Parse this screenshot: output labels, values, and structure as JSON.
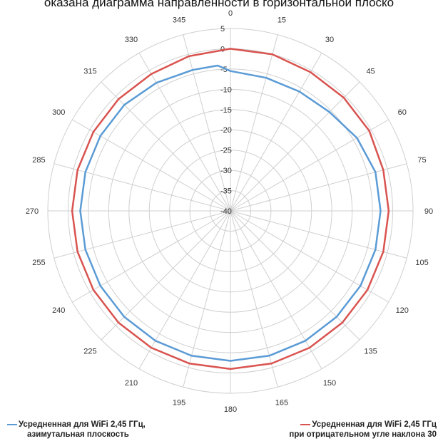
{
  "title": "оказана диаграмма направленности в горизонтальной плоско",
  "chart_data": {
    "type": "polar-line",
    "angle_ticks": [
      "0",
      "15",
      "30",
      "45",
      "60",
      "75",
      "90",
      "105",
      "120",
      "135",
      "150",
      "165",
      "180",
      "195",
      "210",
      "225",
      "240",
      "255",
      "270",
      "285",
      "300",
      "315",
      "330",
      "345"
    ],
    "radial_ticks": [
      "5",
      "0",
      "-5",
      "-10",
      "-15",
      "-20",
      "-25",
      "-30",
      "-35",
      "-40"
    ],
    "radial_range": [
      -40,
      5
    ],
    "grid": true,
    "series": [
      {
        "name_line1": "Усредненная для WiFi 2,45 ГГц,",
        "name_line2": "азимутальная плоскость",
        "color": "#5b9bd5",
        "angles": [
          0,
          15,
          30,
          45,
          60,
          75,
          90,
          105,
          120,
          135,
          150,
          165,
          180,
          195,
          210,
          225,
          240,
          255,
          270,
          285,
          300,
          315,
          330,
          345,
          355
        ],
        "values": [
          -5.5,
          -6,
          -6,
          -5.5,
          -4,
          -3,
          -3,
          -3,
          -3,
          -3,
          -3,
          -3,
          -3,
          -3,
          -3,
          -3,
          -3,
          -3,
          -3,
          -3,
          -3,
          -3,
          -3.5,
          -4,
          -4
        ]
      },
      {
        "name_line1": "Усредненная для WiFi 2,45 ГГц",
        "name_line2": "при отрицательном угле наклона 30",
        "color": "#d9534f",
        "angles": [
          0,
          15,
          30,
          45,
          60,
          75,
          90,
          105,
          120,
          135,
          150,
          165,
          180,
          195,
          210,
          225,
          240,
          255,
          270,
          285,
          300,
          315,
          330,
          345
        ],
        "values": [
          0,
          0,
          -0.5,
          -0.5,
          -0.5,
          -1,
          -1,
          -1,
          -1,
          -1,
          -1,
          -1,
          -1,
          -1,
          -1,
          -1,
          -1,
          -1,
          -1,
          -1,
          -1,
          -1,
          -1,
          -0.5
        ]
      }
    ]
  }
}
